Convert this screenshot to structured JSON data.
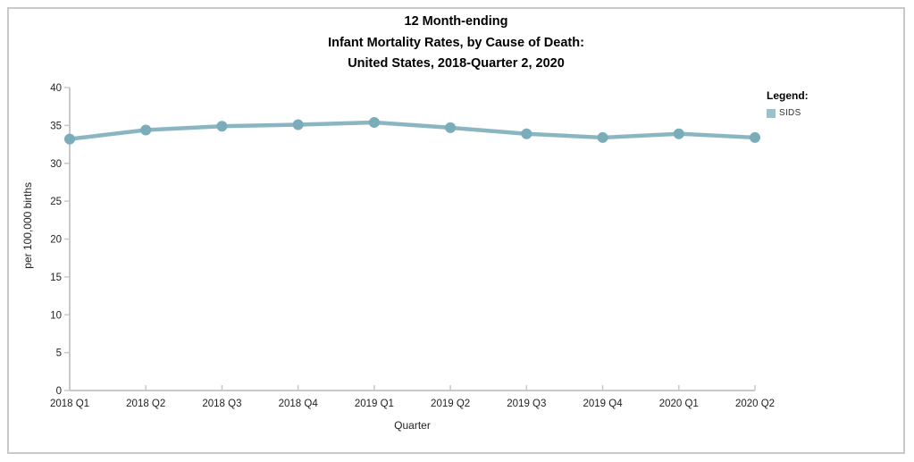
{
  "header": {
    "title_lines": [
      "12 Month-ending",
      "Infant Mortality Rates, by Cause of Death:",
      "United States, 2018-Quarter 2, 2020"
    ]
  },
  "legend": {
    "title": "Legend:"
  },
  "colors": {
    "line": "#8ab6c2",
    "marker": "#7aacba",
    "legend_swatch": "#9bc2cb",
    "axis": "#c9c9c9",
    "tick_label": "#222222"
  },
  "chart_data": {
    "type": "line",
    "title": "12 Month-ending Infant Mortality Rates, by Cause of Death: United States, 2018-Quarter 2, 2020",
    "xlabel": "Quarter",
    "ylabel": "per 100,000 births",
    "categories": [
      "2018 Q1",
      "2018 Q2",
      "2018 Q3",
      "2018 Q4",
      "2019 Q1",
      "2019 Q2",
      "2019 Q3",
      "2019 Q4",
      "2020 Q1",
      "2020 Q2"
    ],
    "series": [
      {
        "name": "SIDS",
        "values": [
          33.2,
          34.4,
          34.9,
          35.1,
          35.4,
          34.7,
          33.9,
          33.4,
          33.9,
          33.4
        ]
      }
    ],
    "ylim": [
      0,
      40
    ],
    "ytick_step": 5,
    "grid": false,
    "markers": true,
    "legend_position": "top-right"
  }
}
